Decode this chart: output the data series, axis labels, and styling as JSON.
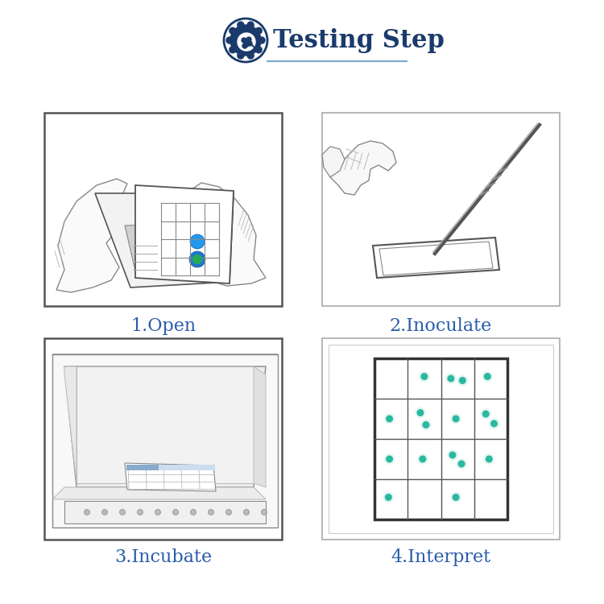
{
  "title": "Testing Step",
  "title_color": "#1a3a6b",
  "title_fontsize": 22,
  "bg_color": "#ffffff",
  "panel_border_color": "#444444",
  "step_label_color": "#2a5caa",
  "step_label_fontsize": 16,
  "steps": [
    "1.Open",
    "2.Inoculate",
    "3.Incubate",
    "4.Interpret"
  ],
  "dot_color": "#2ab8a0",
  "underline_color": "#7aaad0",
  "icon_color": "#1a3a6b",
  "sketch_color": "#888888",
  "sketch_light": "#bbbbbb",
  "sketch_dark": "#555555"
}
